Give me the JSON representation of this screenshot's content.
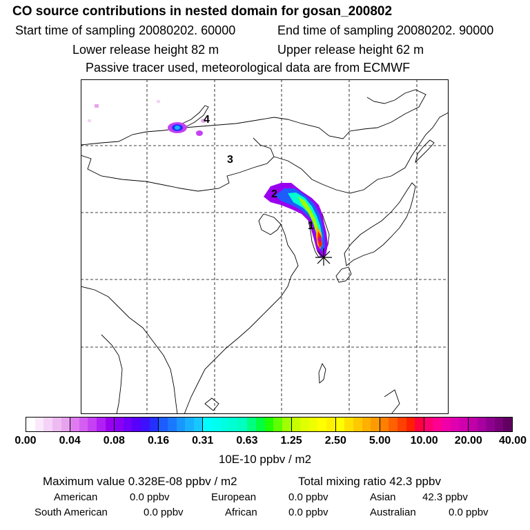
{
  "title": "CO  source contributions in nested domain for gosan_200802",
  "start_time": "Start time of sampling 20080202. 60000",
  "end_time": "End time of sampling 20080202. 90000",
  "lower_release": "Lower release height   82 m",
  "upper_release": "Upper release height   62 m",
  "tracer_note": "Passive tracer used, meteorological data are from ECMWF",
  "map": {
    "labels": [
      "4",
      "3",
      "2",
      "1"
    ],
    "receptor_symbol": "✳",
    "colors": {
      "border": "#000000",
      "grid": "#000000"
    }
  },
  "colorbar": {
    "ticks": [
      "0.00",
      "0.04",
      "0.08",
      "0.16",
      "0.31",
      "0.63",
      "1.25",
      "2.50",
      "5.00",
      "10.00",
      "20.00",
      "40.00"
    ],
    "segments": [
      [
        "#ffffff",
        "#fbe9fb",
        "#f5d2f7",
        "#eebaf2",
        "#e8a3ee"
      ],
      [
        "#e07cf0",
        "#d55ef2",
        "#c640f4",
        "#b020f5",
        "#9a00f0"
      ],
      [
        "#8a00f5",
        "#7000f8",
        "#5800fb",
        "#3d10ff",
        "#2430ff"
      ],
      [
        "#1d5cff",
        "#1a78ff",
        "#1a96ff",
        "#18b0ff",
        "#16c8ff"
      ],
      [
        "#00ffff",
        "#00fff0",
        "#00ffe0",
        "#00ffd0",
        "#00ffc0"
      ],
      [
        "#00ff80",
        "#00ff40",
        "#20ff00",
        "#60ff00",
        "#a0ff00"
      ],
      [
        "#c8ff00",
        "#e0ff00",
        "#f0ff00",
        "#ffff00",
        "#fff000"
      ],
      [
        "#ffff00",
        "#ffe000",
        "#ffc800",
        "#ffb000",
        "#ff9a00"
      ],
      [
        "#ff8000",
        "#ff6000",
        "#ff4000",
        "#ff2000",
        "#ff0040"
      ],
      [
        "#ff0070",
        "#ff0090",
        "#f000a8",
        "#e000b0",
        "#d000b0"
      ],
      [
        "#c000a8",
        "#a800a0",
        "#900090",
        "#780078",
        "#600060"
      ]
    ],
    "units": "10E-10 ppbv / m2"
  },
  "stats": {
    "max_value": "Maximum value  0.328E-08 ppbv / m2",
    "total_mixing": "Total mixing ratio       42.3 ppbv",
    "american_label": "American",
    "american_value": "0.0 ppbv",
    "european_label": "European",
    "european_value": "0.0 ppbv",
    "asian_label": "Asian",
    "asian_value": "42.3 ppbv",
    "south_american_label": "South American",
    "south_american_value": "0.0 ppbv",
    "african_label": "African",
    "african_value": "0.0 ppbv",
    "australian_label": "Australian",
    "australian_value": "0.0 ppbv"
  }
}
